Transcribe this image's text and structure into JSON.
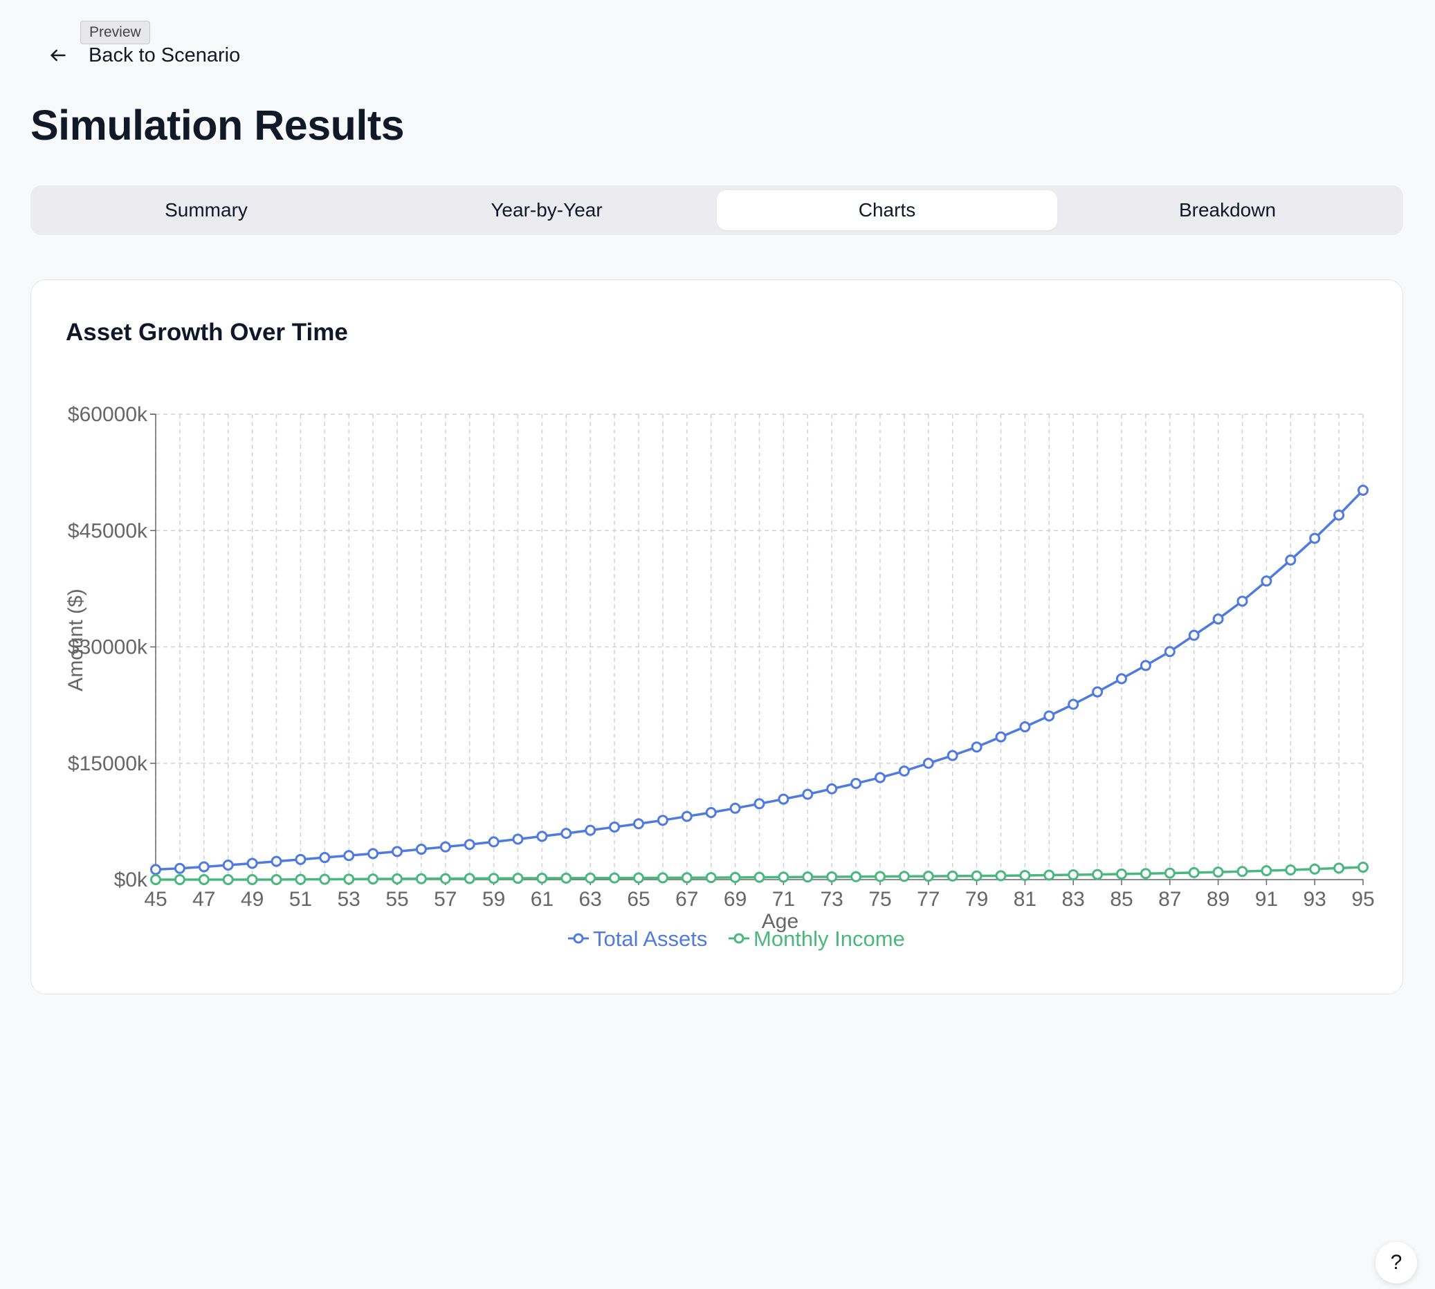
{
  "preview_badge": "Preview",
  "back_link": {
    "label": "Back to Scenario",
    "icon": "arrow-left-icon"
  },
  "page_title": "Simulation Results",
  "tabs": [
    {
      "label": "Summary",
      "active": false
    },
    {
      "label": "Year-by-Year",
      "active": false
    },
    {
      "label": "Charts",
      "active": true
    },
    {
      "label": "Breakdown",
      "active": false
    }
  ],
  "help_button": {
    "label": "?"
  },
  "chart_card": {
    "title": "Asset Growth Over Time"
  },
  "chart_data": {
    "type": "line",
    "title": "Asset Growth Over Time",
    "xlabel": "Age",
    "ylabel": "Amount ($)",
    "xlim": [
      45,
      95
    ],
    "ylim": [
      0,
      60000
    ],
    "x_ticks": [
      45,
      47,
      49,
      51,
      53,
      55,
      57,
      59,
      61,
      63,
      65,
      67,
      69,
      71,
      73,
      75,
      77,
      79,
      81,
      83,
      85,
      87,
      89,
      91,
      93,
      95
    ],
    "x_tick_labels": [
      "45",
      "47",
      "49",
      "51",
      "53",
      "55",
      "57",
      "59",
      "61",
      "63",
      "65",
      "67",
      "69",
      "71",
      "73",
      "75",
      "77",
      "79",
      "81",
      "83",
      "85",
      "87",
      "89",
      "91",
      "93",
      "95"
    ],
    "y_ticks": [
      0,
      15000,
      30000,
      45000,
      60000
    ],
    "y_tick_labels": [
      "$0k",
      "$15000k",
      "$30000k",
      "$45000k",
      "$60000k"
    ],
    "grid": true,
    "legend_position": "bottom-center",
    "x": [
      45,
      46,
      47,
      48,
      49,
      50,
      51,
      52,
      53,
      54,
      55,
      56,
      57,
      58,
      59,
      60,
      61,
      62,
      63,
      64,
      65,
      66,
      67,
      68,
      69,
      70,
      71,
      72,
      73,
      74,
      75,
      76,
      77,
      78,
      79,
      80,
      81,
      82,
      83,
      84,
      85,
      86,
      87,
      88,
      89,
      90,
      91,
      92,
      93,
      94,
      95
    ],
    "series": [
      {
        "name": "Total Assets",
        "color": "#4f7be0",
        "values": [
          1300,
          1450,
          1650,
          1870,
          2100,
          2350,
          2600,
          2850,
          3100,
          3350,
          3620,
          3920,
          4220,
          4530,
          4870,
          5220,
          5580,
          5960,
          6360,
          6780,
          7200,
          7650,
          8150,
          8650,
          9200,
          9780,
          10380,
          11000,
          11700,
          12400,
          13150,
          14000,
          15000,
          16000,
          17100,
          18400,
          19700,
          21100,
          22600,
          24200,
          25900,
          27600,
          29400,
          31500,
          33600,
          35900,
          38500,
          41200,
          44000,
          47000,
          50200
        ]
      },
      {
        "name": "Monthly Income",
        "color": "#4ab87e",
        "values": [
          0,
          0,
          0,
          0,
          0,
          0,
          30,
          40,
          60,
          80,
          100,
          110,
          120,
          140,
          160,
          170,
          180,
          190,
          200,
          210,
          220,
          230,
          240,
          260,
          280,
          300,
          320,
          340,
          360,
          380,
          400,
          420,
          440,
          460,
          480,
          500,
          540,
          580,
          620,
          660,
          720,
          780,
          840,
          900,
          970,
          1050,
          1150,
          1250,
          1360,
          1480,
          1600
        ]
      }
    ]
  }
}
